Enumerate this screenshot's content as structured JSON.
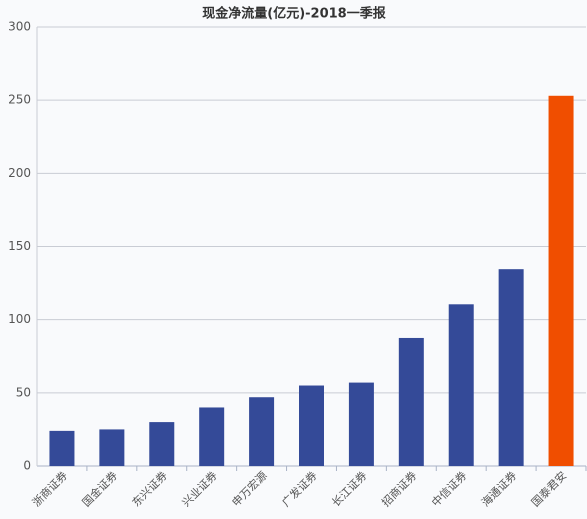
{
  "chart_data": {
    "type": "bar",
    "title": "现金净流量(亿元)-2018一季报",
    "categories": [
      "浙商证券",
      "国金证券",
      "东兴证券",
      "兴业证券",
      "申万宏源",
      "广发证券",
      "长江证券",
      "招商证券",
      "中信证券",
      "海通证券",
      "国泰君安"
    ],
    "values": [
      24,
      25,
      30,
      40,
      47,
      55,
      57,
      87.5,
      110.5,
      134.5,
      253
    ],
    "colors": [
      "#344a98",
      "#344a98",
      "#344a98",
      "#344a98",
      "#344a98",
      "#344a98",
      "#344a98",
      "#344a98",
      "#344a98",
      "#344a98",
      "#f04e00"
    ],
    "ylim": [
      0,
      300
    ],
    "yticks": [
      0,
      50,
      100,
      150,
      200,
      250,
      300
    ],
    "grid": true
  }
}
